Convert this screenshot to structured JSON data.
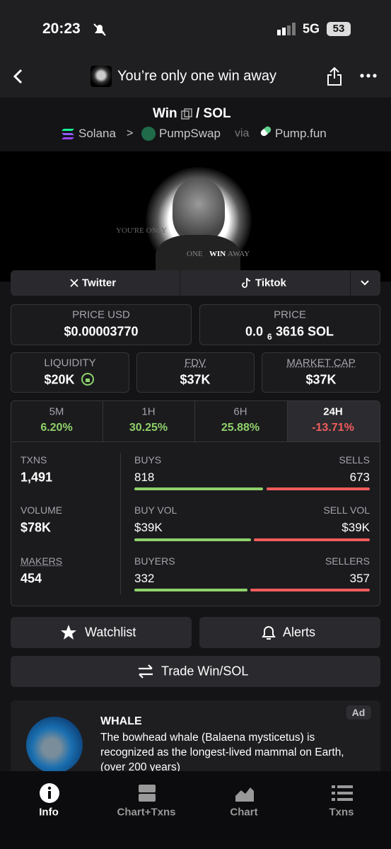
{
  "status_bar": {
    "time": "20:23",
    "network": "5G",
    "battery": "53"
  },
  "header": {
    "title": "You’re only one win away",
    "pair_base": "Win",
    "pair_quote": "/ SOL",
    "chain": "Solana",
    "separator": ">",
    "dex": "PumpSwap",
    "via": "via",
    "launchpad": "Pump.fun"
  },
  "banner": {
    "text_1": "YOU'RE ONLY",
    "text_2": "ONE",
    "text_3": "WIN",
    "text_4": "AWAY"
  },
  "links": [
    "Twitter",
    "Tiktok"
  ],
  "price": {
    "usd_label": "PRICE USD",
    "usd_value": "$0.00003770",
    "native_label": "PRICE",
    "native_prefix": "0.0",
    "native_zeros": "6",
    "native_rest": "3616 SOL"
  },
  "metrics": [
    {
      "label": "LIQUIDITY",
      "value": "$20K"
    },
    {
      "label": "FDV",
      "value": "$37K"
    },
    {
      "label": "MARKET CAP",
      "value": "$37K"
    }
  ],
  "timeframes": [
    {
      "label": "5M",
      "change": "6.20%"
    },
    {
      "label": "1H",
      "change": "30.25%"
    },
    {
      "label": "6H",
      "change": "25.88%"
    },
    {
      "label": "24H",
      "change": "-13.71%"
    }
  ],
  "stats": [
    {
      "label": "TXNS",
      "value": "1,491",
      "left_label": "BUYS",
      "left_value": "818",
      "right_label": "SELLS",
      "right_value": "673"
    },
    {
      "label": "VOLUME",
      "value": "$78K",
      "left_label": "BUY VOL",
      "left_value": "$39K",
      "right_label": "SELL VOL",
      "right_value": "$39K"
    },
    {
      "label": "MAKERS",
      "value": "454",
      "left_label": "BUYERS",
      "left_value": "332",
      "right_label": "SELLERS",
      "right_value": "357"
    }
  ],
  "actions": {
    "watchlist": "Watchlist",
    "alerts": "Alerts",
    "trade": "Trade Win/SOL"
  },
  "ad": {
    "badge": "Ad",
    "title": "WHALE",
    "text": "The bowhead whale (Balaena mysticetus) is recognized as the longest-lived mammal on Earth, (over 200 years)"
  },
  "bottom_nav": [
    "Info",
    "Chart+Txns",
    "Chart",
    "Txns"
  ]
}
